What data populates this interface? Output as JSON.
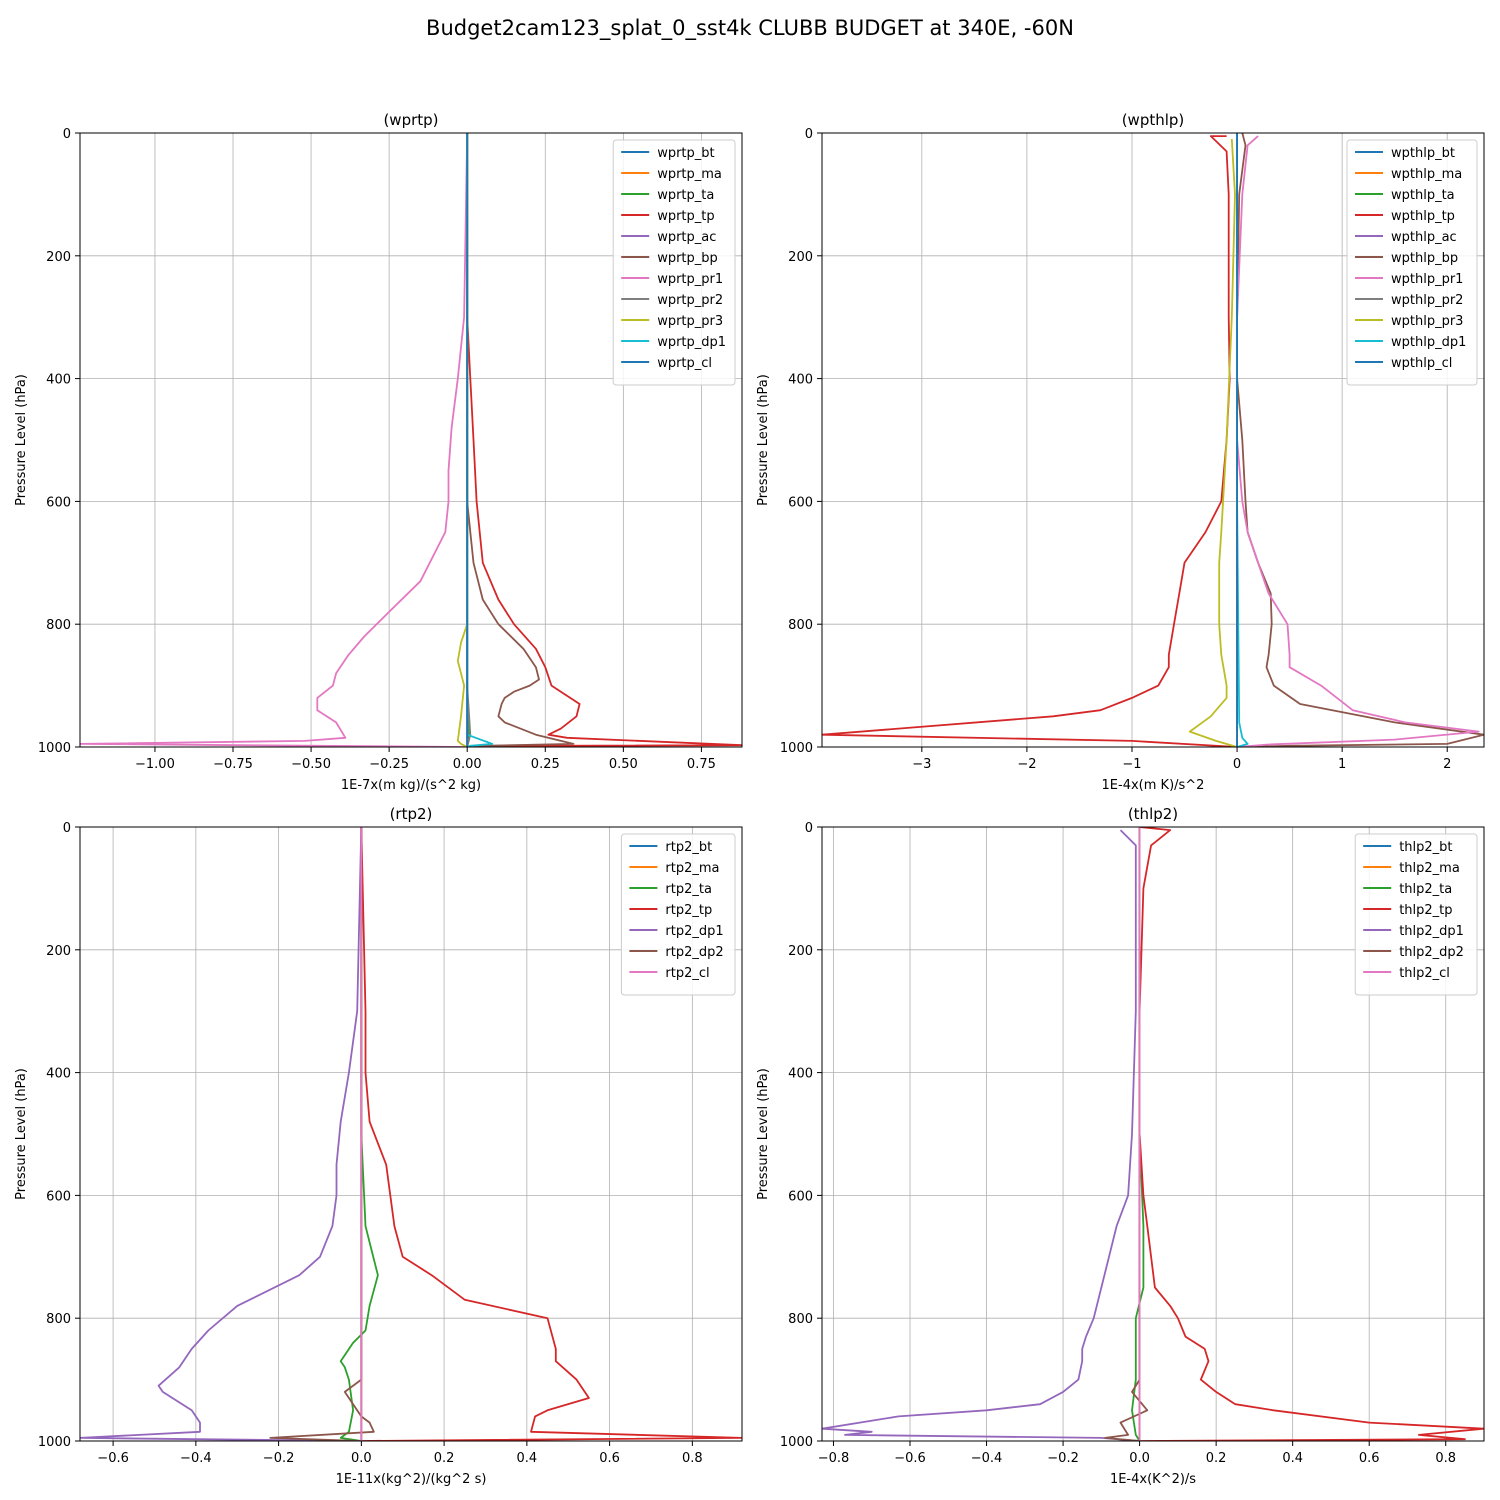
{
  "figure": {
    "suptitle": "Budget2cam123_splat_0_sst4k CLUBB BUDGET at 340E, -60N"
  },
  "chart_data": [
    {
      "type": "line",
      "title": "(wprtp)",
      "xlabel": "1E-7x(m kg)/(s^2 kg)",
      "ylabel": "Pressure Level (hPa)",
      "xlim": [
        -1.24,
        0.88
      ],
      "ylim": [
        1000,
        0
      ],
      "xticks": [
        -1.0,
        -0.75,
        -0.5,
        -0.25,
        0.0,
        0.25,
        0.5,
        0.75
      ],
      "xtick_labels": [
        "−1.00",
        "−0.75",
        "−0.50",
        "−0.25",
        "0.00",
        "0.25",
        "0.50",
        "0.75"
      ],
      "yticks": [
        0,
        200,
        400,
        600,
        800,
        1000
      ],
      "grid": true,
      "legend": "top-right",
      "series": [
        {
          "name": "wprtp_bt",
          "color": "#1f77b4",
          "x": [
            0,
            0,
            0
          ],
          "y": [
            0,
            500,
            1000
          ]
        },
        {
          "name": "wprtp_ma",
          "color": "#ff7f0e",
          "x": [
            0,
            0,
            0
          ],
          "y": [
            0,
            500,
            1000
          ]
        },
        {
          "name": "wprtp_ta",
          "color": "#2ca02c",
          "x": [
            0,
            0,
            0,
            0,
            0.005,
            0
          ],
          "y": [
            0,
            500,
            800,
            900,
            980,
            1000
          ]
        },
        {
          "name": "wprtp_tp",
          "color": "#d62728",
          "x": [
            0,
            0,
            0.01,
            0.02,
            0.03,
            0.04,
            0.05,
            0.1,
            0.15,
            0.22,
            0.25,
            0.27,
            0.36,
            0.35,
            0.3,
            0.26,
            0.32,
            0.88,
            0.3,
            0
          ],
          "y": [
            0,
            300,
            400,
            500,
            600,
            650,
            700,
            760,
            800,
            840,
            870,
            900,
            930,
            950,
            970,
            980,
            985,
            997,
            998,
            1000
          ]
        },
        {
          "name": "wprtp_ac",
          "color": "#9467bd",
          "x": [
            0,
            0,
            0,
            0
          ],
          "y": [
            0,
            500,
            900,
            1000
          ]
        },
        {
          "name": "wprtp_bp",
          "color": "#8c564b",
          "x": [
            0,
            0,
            0,
            0.01,
            0.02,
            0.05,
            0.1,
            0.18,
            0.22,
            0.23,
            0.2,
            0.15,
            0.12,
            0.11,
            0.1,
            0.12,
            0.22,
            0.34,
            0.05,
            0
          ],
          "y": [
            0,
            300,
            600,
            650,
            700,
            760,
            800,
            840,
            870,
            890,
            900,
            910,
            920,
            930,
            950,
            960,
            980,
            995,
            998,
            1000
          ]
        },
        {
          "name": "wprtp_pr1",
          "color": "#e377c2",
          "x": [
            0,
            -0.01,
            -0.03,
            -0.05,
            -0.06,
            -0.06,
            -0.07,
            -0.15,
            -0.25,
            -0.33,
            -0.38,
            -0.42,
            -0.43,
            -0.48,
            -0.48,
            -0.42,
            -0.39,
            -0.52,
            -1.24,
            0
          ],
          "y": [
            0,
            300,
            400,
            480,
            550,
            600,
            650,
            730,
            780,
            820,
            850,
            880,
            900,
            920,
            940,
            960,
            985,
            990,
            995,
            1000
          ]
        },
        {
          "name": "wprtp_pr2",
          "color": "#7f7f7f",
          "x": [
            0,
            0,
            0,
            0,
            0.01,
            0
          ],
          "y": [
            0,
            500,
            800,
            900,
            980,
            1000
          ]
        },
        {
          "name": "wprtp_pr3",
          "color": "#bcbd22",
          "x": [
            0,
            0,
            0,
            -0.02,
            -0.03,
            -0.02,
            -0.01,
            -0.02,
            -0.03,
            -0.02,
            0
          ],
          "y": [
            0,
            500,
            800,
            830,
            860,
            880,
            900,
            950,
            990,
            995,
            1000
          ]
        },
        {
          "name": "wprtp_dp1",
          "color": "#17becf",
          "x": [
            0,
            0,
            0,
            0.08,
            0.01,
            0
          ],
          "y": [
            0,
            600,
            980,
            995,
            998,
            1000
          ]
        },
        {
          "name": "wprtp_cl",
          "color": "#1f77b4",
          "x": [
            0,
            0,
            0
          ],
          "y": [
            0,
            500,
            1000
          ]
        }
      ]
    },
    {
      "type": "line",
      "title": "(wpthlp)",
      "xlabel": "1E-4x(m K)/s^2",
      "ylabel": "Pressure Level (hPa)",
      "xlim": [
        -3.95,
        2.35
      ],
      "ylim": [
        1000,
        0
      ],
      "xticks": [
        -3,
        -2,
        -1,
        0,
        1,
        2
      ],
      "xtick_labels": [
        "−3",
        "−2",
        "−1",
        "0",
        "1",
        "2"
      ],
      "yticks": [
        0,
        200,
        400,
        600,
        800,
        1000
      ],
      "grid": true,
      "legend": "top-right",
      "series": [
        {
          "name": "wpthlp_bt",
          "color": "#1f77b4",
          "x": [
            0,
            0,
            0
          ],
          "y": [
            0,
            500,
            1000
          ]
        },
        {
          "name": "wpthlp_ma",
          "color": "#ff7f0e",
          "x": [
            0,
            0,
            0
          ],
          "y": [
            0,
            500,
            1000
          ]
        },
        {
          "name": "wpthlp_ta",
          "color": "#2ca02c",
          "x": [
            0,
            0,
            0,
            0
          ],
          "y": [
            0,
            500,
            900,
            1000
          ]
        },
        {
          "name": "wpthlp_tp",
          "color": "#d62728",
          "x": [
            -0.1,
            -0.25,
            -0.1,
            -0.08,
            -0.08,
            -0.08,
            -0.07,
            -0.1,
            -0.15,
            -0.3,
            -0.5,
            -0.55,
            -0.6,
            -0.65,
            -0.65,
            -0.75,
            -1.0,
            -1.3,
            -1.75,
            -3.95,
            -1.0,
            0
          ],
          "y": [
            5,
            5,
            30,
            100,
            200,
            300,
            400,
            500,
            600,
            650,
            700,
            750,
            800,
            850,
            870,
            900,
            920,
            940,
            950,
            980,
            990,
            1000
          ]
        },
        {
          "name": "wpthlp_ac",
          "color": "#9467bd",
          "x": [
            0,
            0,
            0
          ],
          "y": [
            0,
            500,
            1000
          ]
        },
        {
          "name": "wpthlp_bp",
          "color": "#8c564b",
          "x": [
            0.05,
            0.08,
            0.02,
            0,
            0,
            0.05,
            0.08,
            0.1,
            0.2,
            0.32,
            0.33,
            0.3,
            0.28,
            0.35,
            0.6,
            1.5,
            2.35,
            2.0,
            0.5,
            0
          ],
          "y": [
            0,
            20,
            100,
            300,
            400,
            500,
            600,
            650,
            700,
            750,
            800,
            850,
            870,
            900,
            930,
            960,
            980,
            995,
            998,
            1000
          ]
        },
        {
          "name": "wpthlp_pr1",
          "color": "#e377c2",
          "x": [
            0.2,
            0.1,
            0.05,
            0,
            0,
            0,
            0.05,
            0.1,
            0.2,
            0.3,
            0.48,
            0.5,
            0.5,
            0.8,
            1.1,
            1.6,
            2.3,
            1.5,
            0.3,
            0
          ],
          "y": [
            5,
            20,
            100,
            300,
            400,
            500,
            600,
            650,
            700,
            750,
            800,
            850,
            870,
            900,
            940,
            960,
            975,
            988,
            996,
            1000
          ]
        },
        {
          "name": "wpthlp_pr2",
          "color": "#7f7f7f",
          "x": [
            0,
            0,
            0
          ],
          "y": [
            0,
            500,
            1000
          ]
        },
        {
          "name": "wpthlp_pr3",
          "color": "#bcbd22",
          "x": [
            -0.05,
            -0.02,
            -0.05,
            -0.1,
            -0.15,
            -0.17,
            -0.17,
            -0.15,
            -0.12,
            -0.1,
            -0.1,
            -0.25,
            -0.45,
            -0.2,
            0
          ],
          "y": [
            10,
            100,
            300,
            500,
            650,
            700,
            800,
            850,
            880,
            900,
            920,
            950,
            975,
            990,
            1000
          ]
        },
        {
          "name": "wpthlp_dp1",
          "color": "#17becf",
          "x": [
            0,
            0,
            0.02,
            0.05,
            0.1,
            0
          ],
          "y": [
            0,
            600,
            960,
            985,
            995,
            1000
          ]
        },
        {
          "name": "wpthlp_cl",
          "color": "#1f77b4",
          "x": [
            0,
            0,
            0
          ],
          "y": [
            0,
            500,
            1000
          ]
        }
      ]
    },
    {
      "type": "line",
      "title": "(rtp2)",
      "xlabel": "1E-11x(kg^2)/(kg^2 s)",
      "ylabel": "Pressure Level (hPa)",
      "xlim": [
        -0.68,
        0.92
      ],
      "ylim": [
        1000,
        0
      ],
      "xticks": [
        -0.6,
        -0.4,
        -0.2,
        0.0,
        0.2,
        0.4,
        0.6,
        0.8
      ],
      "xtick_labels": [
        "−0.6",
        "−0.4",
        "−0.2",
        "0.0",
        "0.2",
        "0.4",
        "0.6",
        "0.8"
      ],
      "yticks": [
        0,
        200,
        400,
        600,
        800,
        1000
      ],
      "grid": true,
      "legend": "top-right",
      "series": [
        {
          "name": "rtp2_bt",
          "color": "#1f77b4",
          "x": [
            0,
            0,
            0
          ],
          "y": [
            0,
            500,
            1000
          ]
        },
        {
          "name": "rtp2_ma",
          "color": "#ff7f0e",
          "x": [
            0,
            0,
            0
          ],
          "y": [
            0,
            500,
            1000
          ]
        },
        {
          "name": "rtp2_ta",
          "color": "#2ca02c",
          "x": [
            0,
            0,
            0.01,
            0.04,
            0.02,
            0.01,
            -0.02,
            -0.05,
            -0.04,
            -0.03,
            -0.02,
            -0.03,
            -0.05,
            0
          ],
          "y": [
            0,
            500,
            650,
            730,
            780,
            820,
            840,
            870,
            880,
            900,
            950,
            985,
            995,
            1000
          ]
        },
        {
          "name": "rtp2_tp",
          "color": "#d62728",
          "x": [
            0,
            0.01,
            0.01,
            0.02,
            0.06,
            0.07,
            0.08,
            0.1,
            0.17,
            0.25,
            0.45,
            0.47,
            0.47,
            0.52,
            0.55,
            0.45,
            0.42,
            0.41,
            0.92,
            0
          ],
          "y": [
            0,
            300,
            400,
            480,
            550,
            600,
            650,
            700,
            730,
            770,
            800,
            850,
            870,
            900,
            930,
            950,
            960,
            985,
            995,
            1000
          ]
        },
        {
          "name": "rtp2_dp1",
          "color": "#9467bd",
          "x": [
            0,
            -0.01,
            -0.03,
            -0.05,
            -0.06,
            -0.06,
            -0.07,
            -0.1,
            -0.15,
            -0.3,
            -0.37,
            -0.41,
            -0.44,
            -0.49,
            -0.48,
            -0.41,
            -0.39,
            -0.39,
            -0.68,
            0
          ],
          "y": [
            0,
            300,
            400,
            480,
            550,
            600,
            650,
            700,
            730,
            780,
            820,
            850,
            880,
            910,
            920,
            950,
            970,
            985,
            995,
            1000
          ]
        },
        {
          "name": "rtp2_dp2",
          "color": "#8c564b",
          "x": [
            0,
            0,
            0,
            -0.04,
            -0.02,
            0,
            0.02,
            0.03,
            -0.22,
            0
          ],
          "y": [
            0,
            500,
            900,
            920,
            940,
            960,
            970,
            985,
            995,
            1000
          ]
        },
        {
          "name": "rtp2_cl",
          "color": "#e377c2",
          "x": [
            0,
            0,
            0
          ],
          "y": [
            0,
            500,
            1000
          ]
        }
      ]
    },
    {
      "type": "line",
      "title": "(thlp2)",
      "xlabel": "1E-4x(K^2)/s",
      "ylabel": "Pressure Level (hPa)",
      "xlim": [
        -0.83,
        0.9
      ],
      "ylim": [
        1000,
        0
      ],
      "xticks": [
        -0.8,
        -0.6,
        -0.4,
        -0.2,
        0.0,
        0.2,
        0.4,
        0.6,
        0.8
      ],
      "xtick_labels": [
        "−0.8",
        "−0.6",
        "−0.4",
        "−0.2",
        "0.0",
        "0.2",
        "0.4",
        "0.6",
        "0.8"
      ],
      "yticks": [
        0,
        200,
        400,
        600,
        800,
        1000
      ],
      "grid": true,
      "legend": "top-right",
      "series": [
        {
          "name": "thlp2_bt",
          "color": "#1f77b4",
          "x": [
            0,
            0,
            0
          ],
          "y": [
            0,
            500,
            1000
          ]
        },
        {
          "name": "thlp2_ma",
          "color": "#ff7f0e",
          "x": [
            0,
            0,
            0
          ],
          "y": [
            0,
            500,
            1000
          ]
        },
        {
          "name": "thlp2_ta",
          "color": "#2ca02c",
          "x": [
            0,
            0,
            0.01,
            0.01,
            -0.01,
            -0.01,
            -0.01,
            -0.02,
            -0.01,
            0
          ],
          "y": [
            0,
            500,
            650,
            750,
            800,
            850,
            900,
            950,
            990,
            1000
          ]
        },
        {
          "name": "thlp2_tp",
          "color": "#d62728",
          "x": [
            0,
            0.08,
            0.03,
            0.01,
            0,
            0,
            0.01,
            0.02,
            0.03,
            0.04,
            0.08,
            0.1,
            0.12,
            0.17,
            0.18,
            0.16,
            0.2,
            0.25,
            0.35,
            0.6,
            0.9,
            0.73,
            0.85,
            0
          ],
          "y": [
            0,
            5,
            30,
            100,
            300,
            500,
            600,
            650,
            700,
            750,
            780,
            800,
            830,
            850,
            870,
            900,
            920,
            940,
            950,
            970,
            980,
            990,
            997,
            1000
          ]
        },
        {
          "name": "thlp2_dp1",
          "color": "#9467bd",
          "x": [
            -0.05,
            -0.01,
            -0.01,
            -0.01,
            -0.02,
            -0.03,
            -0.06,
            -0.08,
            -0.12,
            -0.14,
            -0.15,
            -0.15,
            -0.16,
            -0.2,
            -0.26,
            -0.4,
            -0.63,
            -0.83,
            -0.7,
            -0.77,
            -0.1,
            0
          ],
          "y": [
            5,
            30,
            100,
            300,
            500,
            600,
            650,
            700,
            800,
            830,
            850,
            870,
            900,
            920,
            940,
            950,
            960,
            980,
            985,
            990,
            995,
            1000
          ]
        },
        {
          "name": "thlp2_dp2",
          "color": "#8c564b",
          "x": [
            0,
            0,
            0,
            -0.02,
            0.02,
            -0.05,
            -0.03,
            -0.09,
            0
          ],
          "y": [
            0,
            500,
            900,
            920,
            950,
            970,
            990,
            995,
            1000
          ]
        },
        {
          "name": "thlp2_cl",
          "color": "#e377c2",
          "x": [
            0,
            0,
            0
          ],
          "y": [
            0,
            500,
            1000
          ]
        }
      ]
    }
  ]
}
